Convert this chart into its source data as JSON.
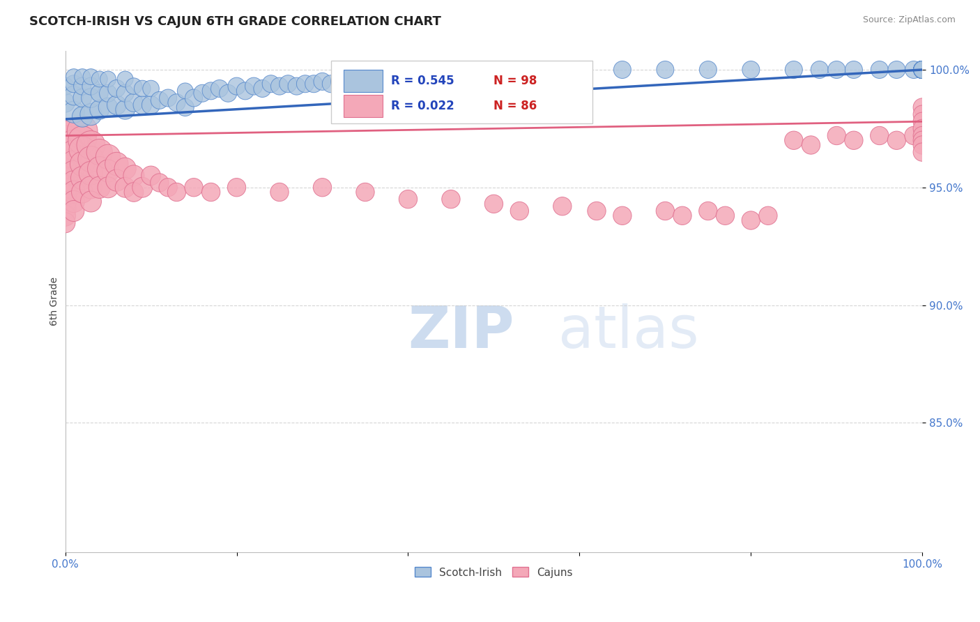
{
  "title": "SCOTCH-IRISH VS CAJUN 6TH GRADE CORRELATION CHART",
  "source_text": "Source: ZipAtlas.com",
  "ylabel": "6th Grade",
  "xlim": [
    0.0,
    1.0
  ],
  "ylim": [
    0.795,
    1.008
  ],
  "yticks": [
    0.85,
    0.9,
    0.95,
    1.0
  ],
  "ytick_labels": [
    "85.0%",
    "90.0%",
    "95.0%",
    "100.0%"
  ],
  "xticks": [
    0.0,
    0.2,
    0.4,
    0.6,
    0.8,
    1.0
  ],
  "xtick_labels": [
    "0.0%",
    "",
    "",
    "",
    "",
    "100.0%"
  ],
  "blue_R": 0.545,
  "blue_N": 98,
  "pink_R": 0.022,
  "pink_N": 86,
  "blue_color": "#aac4de",
  "pink_color": "#f4a8b8",
  "blue_edge_color": "#5588cc",
  "pink_edge_color": "#e07090",
  "blue_line_color": "#3366bb",
  "pink_line_color": "#e06080",
  "grid_color": "#cccccc",
  "title_color": "#222222",
  "source_color": "#888888",
  "axis_label_color": "#444444",
  "tick_label_color": "#4477cc",
  "legend_R_color": "#2244bb",
  "legend_N_color": "#cc2222",
  "blue_trend_x": [
    0.0,
    1.0
  ],
  "blue_trend_y": [
    0.979,
    1.0
  ],
  "pink_trend_x": [
    0.0,
    1.0
  ],
  "pink_trend_y": [
    0.972,
    0.978
  ],
  "blue_scatter_x": [
    0.0,
    0.0,
    0.01,
    0.01,
    0.01,
    0.01,
    0.02,
    0.02,
    0.02,
    0.02,
    0.03,
    0.03,
    0.03,
    0.03,
    0.04,
    0.04,
    0.04,
    0.05,
    0.05,
    0.05,
    0.06,
    0.06,
    0.07,
    0.07,
    0.07,
    0.08,
    0.08,
    0.09,
    0.09,
    0.1,
    0.1,
    0.11,
    0.12,
    0.13,
    0.14,
    0.14,
    0.15,
    0.16,
    0.17,
    0.18,
    0.19,
    0.2,
    0.21,
    0.22,
    0.23,
    0.24,
    0.25,
    0.26,
    0.27,
    0.28,
    0.29,
    0.3,
    0.31,
    0.32,
    0.33,
    0.34,
    0.35,
    0.37,
    0.38,
    0.39,
    0.4,
    0.41,
    0.42,
    0.44,
    0.46,
    0.48,
    0.5,
    0.55,
    0.6,
    0.65,
    0.7,
    0.75,
    0.8,
    0.85,
    0.88,
    0.9,
    0.92,
    0.95,
    0.97,
    0.99,
    1.0,
    1.0,
    1.0,
    1.0,
    1.0,
    1.0,
    1.0,
    1.0,
    1.0,
    1.0,
    1.0,
    1.0,
    1.0,
    1.0,
    1.0,
    1.0,
    1.0,
    1.0
  ],
  "blue_scatter_y": [
    0.986,
    0.993,
    0.982,
    0.989,
    0.994,
    0.997,
    0.98,
    0.988,
    0.993,
    0.997,
    0.981,
    0.988,
    0.993,
    0.997,
    0.983,
    0.99,
    0.996,
    0.984,
    0.99,
    0.996,
    0.985,
    0.992,
    0.983,
    0.99,
    0.996,
    0.986,
    0.993,
    0.985,
    0.992,
    0.985,
    0.992,
    0.987,
    0.988,
    0.986,
    0.984,
    0.991,
    0.988,
    0.99,
    0.991,
    0.992,
    0.99,
    0.993,
    0.991,
    0.993,
    0.992,
    0.994,
    0.993,
    0.994,
    0.993,
    0.994,
    0.994,
    0.995,
    0.994,
    0.995,
    0.995,
    0.996,
    0.996,
    0.997,
    0.996,
    0.997,
    0.997,
    0.997,
    0.998,
    0.998,
    0.998,
    0.999,
    0.999,
    0.999,
    1.0,
    1.0,
    1.0,
    1.0,
    1.0,
    1.0,
    1.0,
    1.0,
    1.0,
    1.0,
    1.0,
    1.0,
    1.0,
    1.0,
    1.0,
    1.0,
    1.0,
    1.0,
    1.0,
    1.0,
    1.0,
    1.0,
    1.0,
    1.0,
    1.0,
    1.0,
    1.0,
    1.0,
    1.0,
    1.0
  ],
  "blue_scatter_sizes": [
    22,
    18,
    28,
    22,
    18,
    15,
    25,
    20,
    18,
    15,
    28,
    22,
    18,
    15,
    22,
    18,
    15,
    22,
    18,
    15,
    22,
    18,
    22,
    18,
    15,
    20,
    16,
    20,
    16,
    20,
    16,
    18,
    18,
    18,
    18,
    15,
    18,
    18,
    18,
    18,
    18,
    18,
    18,
    18,
    18,
    18,
    18,
    18,
    18,
    18,
    18,
    18,
    18,
    18,
    18,
    18,
    18,
    18,
    18,
    18,
    18,
    18,
    18,
    18,
    18,
    18,
    18,
    18,
    18,
    18,
    18,
    18,
    18,
    18,
    18,
    18,
    18,
    18,
    18,
    18,
    18,
    18,
    18,
    18,
    18,
    18,
    18,
    18,
    18,
    18,
    18,
    18,
    18,
    18,
    18,
    18,
    18,
    18
  ],
  "pink_scatter_x": [
    0.0,
    0.0,
    0.0,
    0.0,
    0.0,
    0.0,
    0.0,
    0.0,
    0.0,
    0.0,
    0.0,
    0.0,
    0.0,
    0.0,
    0.0,
    0.01,
    0.01,
    0.01,
    0.01,
    0.01,
    0.01,
    0.01,
    0.01,
    0.01,
    0.02,
    0.02,
    0.02,
    0.02,
    0.02,
    0.02,
    0.03,
    0.03,
    0.03,
    0.03,
    0.03,
    0.04,
    0.04,
    0.04,
    0.05,
    0.05,
    0.05,
    0.06,
    0.06,
    0.07,
    0.07,
    0.08,
    0.08,
    0.09,
    0.1,
    0.11,
    0.12,
    0.13,
    0.15,
    0.17,
    0.2,
    0.25,
    0.3,
    0.35,
    0.4,
    0.45,
    0.5,
    0.53,
    0.58,
    0.62,
    0.65,
    0.7,
    0.72,
    0.75,
    0.77,
    0.8,
    0.82,
    0.85,
    0.87,
    0.9,
    0.92,
    0.95,
    0.97,
    0.99,
    1.0,
    1.0,
    1.0,
    1.0,
    1.0,
    1.0,
    1.0,
    1.0
  ],
  "pink_scatter_y": [
    0.97,
    0.968,
    0.966,
    0.964,
    0.962,
    0.96,
    0.958,
    0.956,
    0.953,
    0.95,
    0.947,
    0.944,
    0.941,
    0.938,
    0.935,
    0.972,
    0.968,
    0.964,
    0.96,
    0.956,
    0.952,
    0.948,
    0.944,
    0.94,
    0.974,
    0.97,
    0.966,
    0.96,
    0.954,
    0.948,
    0.968,
    0.962,
    0.956,
    0.95,
    0.944,
    0.965,
    0.958,
    0.95,
    0.963,
    0.957,
    0.95,
    0.96,
    0.953,
    0.958,
    0.95,
    0.955,
    0.948,
    0.95,
    0.955,
    0.952,
    0.95,
    0.948,
    0.95,
    0.948,
    0.95,
    0.948,
    0.95,
    0.948,
    0.945,
    0.945,
    0.943,
    0.94,
    0.942,
    0.94,
    0.938,
    0.94,
    0.938,
    0.94,
    0.938,
    0.936,
    0.938,
    0.97,
    0.968,
    0.972,
    0.97,
    0.972,
    0.97,
    0.972,
    0.984,
    0.981,
    0.978,
    0.975,
    0.972,
    0.97,
    0.968,
    0.965
  ],
  "pink_scatter_sizes": [
    120,
    90,
    75,
    65,
    55,
    50,
    45,
    40,
    38,
    35,
    32,
    30,
    28,
    26,
    24,
    65,
    55,
    48,
    42,
    38,
    34,
    30,
    28,
    26,
    55,
    48,
    42,
    36,
    32,
    28,
    48,
    40,
    34,
    30,
    26,
    40,
    34,
    28,
    36,
    30,
    26,
    32,
    28,
    28,
    24,
    26,
    22,
    24,
    22,
    20,
    20,
    20,
    20,
    20,
    20,
    20,
    20,
    20,
    20,
    20,
    20,
    20,
    20,
    20,
    20,
    20,
    20,
    20,
    20,
    20,
    20,
    20,
    20,
    20,
    20,
    20,
    20,
    20,
    20,
    20,
    20,
    20,
    20,
    20,
    20,
    20
  ]
}
